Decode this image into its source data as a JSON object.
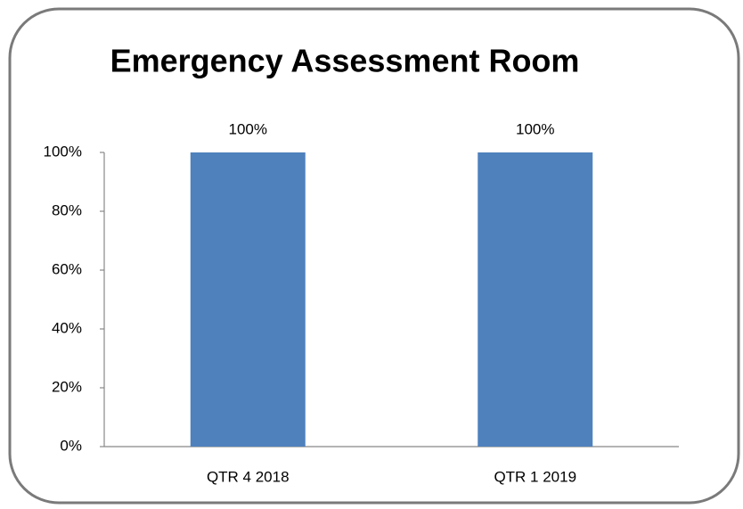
{
  "chart_data": {
    "type": "bar",
    "title": "Emergency Assessment Room",
    "categories": [
      "QTR 4 2018",
      "QTR 1 2019"
    ],
    "values": [
      100,
      100
    ],
    "value_labels": [
      "100%",
      "100%"
    ],
    "color": "#4f81bd",
    "ylim": [
      0,
      100
    ],
    "yticks": [
      {
        "value": 0,
        "label": "0%"
      },
      {
        "value": 20,
        "label": "20%"
      },
      {
        "value": 40,
        "label": "40%"
      },
      {
        "value": 60,
        "label": "60%"
      },
      {
        "value": 80,
        "label": "80%"
      },
      {
        "value": 100,
        "label": "100%"
      }
    ],
    "grid": false
  }
}
